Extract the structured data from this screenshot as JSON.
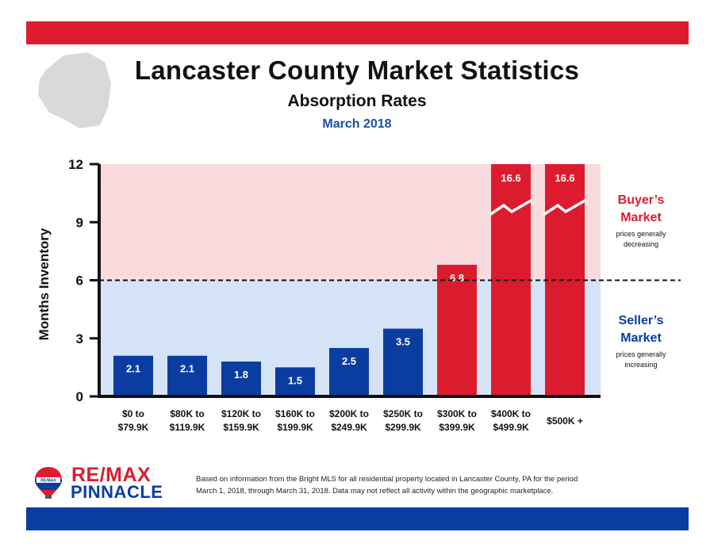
{
  "header": {
    "title": "Lancaster County Market Statistics",
    "subtitle": "Absorption Rates",
    "date": "March 2018"
  },
  "chart_data": {
    "type": "bar",
    "categories": [
      [
        "$0 to",
        "$79.9K"
      ],
      [
        "$80K to",
        "$119.9K"
      ],
      [
        "$120K to",
        "$159.9K"
      ],
      [
        "$160K to",
        "$199.9K"
      ],
      [
        "$200K to",
        "$249.9K"
      ],
      [
        "$250K to",
        "$299.9K"
      ],
      [
        "$300K to",
        "$399.9K"
      ],
      [
        "$400K to",
        "$499.9K"
      ],
      [
        "$500K +"
      ]
    ],
    "values": [
      2.1,
      2.1,
      1.8,
      1.5,
      2.5,
      3.5,
      6.8,
      16.6,
      16.6
    ],
    "value_labels": [
      "2.1",
      "2.1",
      "1.8",
      "1.5",
      "2.5",
      "3.5",
      "6.8",
      "16.6",
      "16.6"
    ],
    "clipped": [
      false,
      false,
      false,
      false,
      false,
      false,
      false,
      true,
      true
    ],
    "ylabel": "Months Inventory",
    "ylim": [
      0,
      12
    ],
    "yticks": [
      0,
      3,
      6,
      9,
      12
    ],
    "threshold": 6,
    "colors": {
      "below_threshold_bar": "#0b3da0",
      "above_threshold_bar": "#dc1c2e",
      "buyer_region": "#f9dadd",
      "seller_region": "#d5e3f8"
    },
    "annotations": {
      "buyer": {
        "title_line1": "Buyer’s",
        "title_line2": "Market",
        "desc_line1": "prices generally",
        "desc_line2": "decreasing"
      },
      "seller": {
        "title_line1": "Seller’s",
        "title_line2": "Market",
        "desc_line1": "prices generally",
        "desc_line2": "increasing"
      }
    }
  },
  "footer": {
    "brand_line1": "RE/MAX",
    "brand_line2": "PINNACLE",
    "balloon_text": "RE/MAX",
    "note_line1": "Based on information from the Bright MLS for all residential property located in Lancaster County, PA for the period",
    "note_line2": "March 1, 2018, through March 31, 2018.  Data may not reflect all activity within the geographic marketplace."
  }
}
